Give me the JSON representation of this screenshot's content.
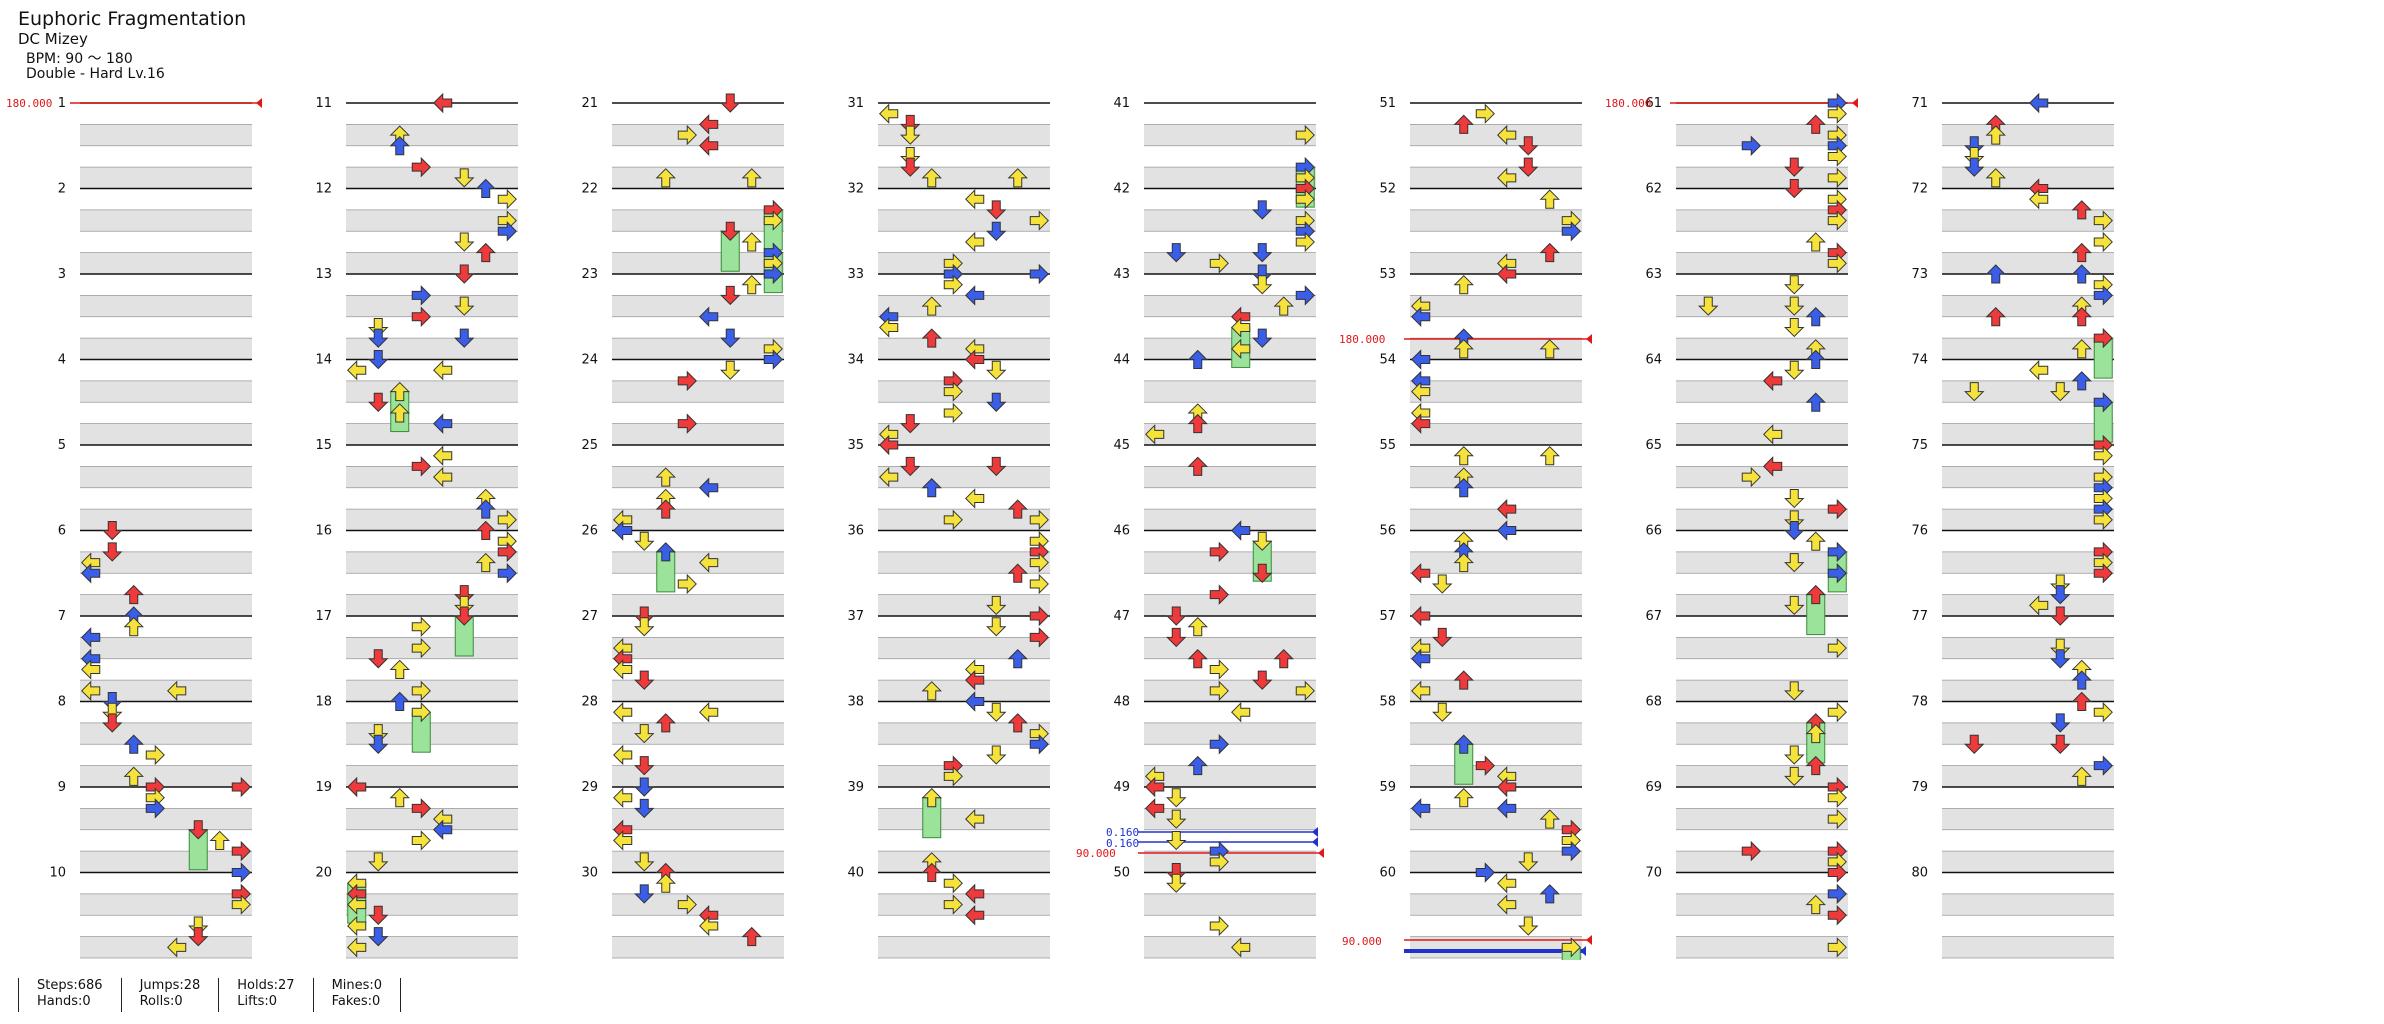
{
  "header": {
    "title": "Euphoric Fragmentation",
    "artist": "DC Mizey",
    "bpm_line": "BPM: 90 ～ 180",
    "difficulty_line": "Double - Hard Lv.16"
  },
  "stats": [
    [
      "Steps:686",
      "Hands:0"
    ],
    [
      "Jumps:28",
      "Rolls:0"
    ],
    [
      "Holds:27",
      "Lifts:0"
    ],
    [
      "Mines:0",
      "Fakes:0"
    ]
  ],
  "measures_per_column": 10,
  "column_count": 8,
  "trailing_empty_measure": "80",
  "labels": {
    "bpm_start": "180.000",
    "bpm_53": "180.000",
    "bpm_61": "180.000",
    "bpm_49_low": "90.000",
    "bpm_60_low": "90.000",
    "stop_a": "0.160",
    "stop_b": "0.160"
  },
  "colors": {
    "grid_shade": "#e2e2e2",
    "measure_line": "#111111",
    "red_arrow": "#ee3a3a",
    "blue_arrow": "#3a5ee8",
    "yellow_arrow": "#f5e23a",
    "hold_green": "#9be39b",
    "bpm_red": "#e01818",
    "stop_blue": "#2233cc"
  },
  "icons": {
    "left": "arrow-left-icon",
    "down": "arrow-down-icon",
    "up": "arrow-up-icon",
    "right": "arrow-right-icon"
  }
}
